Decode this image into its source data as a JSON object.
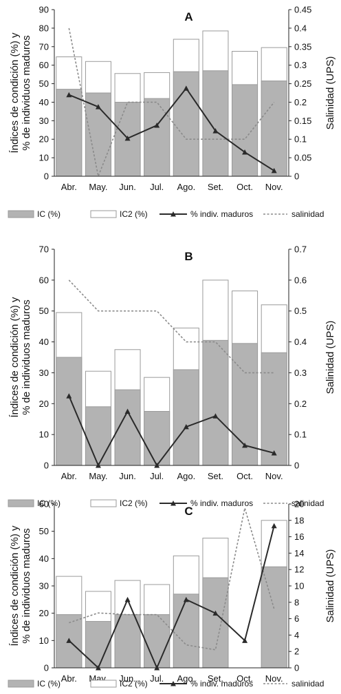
{
  "chart_data": [
    {
      "type": "bar",
      "title": "A",
      "categories": [
        "Abr.",
        "May.",
        "Jun.",
        "Jul.",
        "Ago.",
        "Set.",
        "Oct.",
        "Nov."
      ],
      "ylabel": "Índices de condición (%) y\n% de individuos maduros",
      "y2label": "Salinidad (UPS)",
      "ylim": [
        0,
        90
      ],
      "yticks": [
        0,
        10,
        20,
        30,
        40,
        50,
        60,
        70,
        80,
        90
      ],
      "y2lim": [
        0,
        0.45
      ],
      "y2ticks": [
        "0",
        "0.05",
        "0.1",
        "0.15",
        "0.2",
        "0.25",
        "0.3",
        "0.35",
        "0.4",
        "0.45"
      ],
      "series": [
        {
          "name": "IC (%)",
          "type": "bar",
          "color": "#b3b3b3",
          "values": [
            47,
            45,
            40,
            42,
            56.5,
            57,
            49.5,
            51.5
          ]
        },
        {
          "name": "IC2 (%)",
          "type": "bar",
          "color": "#ffffff",
          "values": [
            64.5,
            62,
            55.5,
            56,
            74,
            78.5,
            67.5,
            69.5
          ]
        },
        {
          "name": "% indiv. maduros",
          "type": "line",
          "color": "#2a2a2a",
          "values": [
            44,
            37.5,
            20.5,
            27.5,
            47.5,
            24.5,
            13,
            3
          ]
        },
        {
          "name": "salinidad",
          "type": "line",
          "axis": "secondary",
          "color": "#8a8a8a",
          "values": [
            0.4,
            0,
            0.2,
            0.2,
            0.1,
            0.1,
            0.1,
            0.2
          ]
        }
      ],
      "legend": "bottom"
    },
    {
      "type": "bar",
      "title": "B",
      "categories": [
        "Abr.",
        "May.",
        "Jun.",
        "Jul.",
        "Ago.",
        "Set.",
        "Oct.",
        "Nov."
      ],
      "ylabel": "Índices de condición (%) y\n% de individuos maduros",
      "y2label": "Salinidad (UPS)",
      "ylim": [
        0,
        70
      ],
      "yticks": [
        0,
        10,
        20,
        30,
        40,
        50,
        60,
        70
      ],
      "y2lim": [
        0,
        0.7
      ],
      "y2ticks": [
        "0",
        "0.1",
        "0.2",
        "0.3",
        "0.4",
        "0.5",
        "0.6",
        "0.7"
      ],
      "series": [
        {
          "name": "IC (%)",
          "type": "bar",
          "color": "#b3b3b3",
          "values": [
            35,
            19,
            24.5,
            17.5,
            31,
            40.5,
            39.5,
            36.5
          ]
        },
        {
          "name": "IC2 (%)",
          "type": "bar",
          "color": "#ffffff",
          "values": [
            49.5,
            30.5,
            37.5,
            28.5,
            44.5,
            60,
            56.5,
            52
          ]
        },
        {
          "name": "% indiv. maduros",
          "type": "line",
          "color": "#2a2a2a",
          "values": [
            22.5,
            0,
            17.5,
            0,
            12.5,
            16,
            6.5,
            4
          ]
        },
        {
          "name": "salinidad",
          "type": "line",
          "axis": "secondary",
          "color": "#8a8a8a",
          "values": [
            0.6,
            0.5,
            0.5,
            0.5,
            0.4,
            0.4,
            0.3,
            0.3
          ]
        }
      ],
      "legend": "bottom"
    },
    {
      "type": "bar",
      "title": "C",
      "categories": [
        "Abr.",
        "May.",
        "Jun.",
        "Jul.",
        "Ago.",
        "Set.",
        "Oct.",
        "Nov."
      ],
      "ylabel": "Índices de condición (%) y\n% de individuos maduros",
      "y2label": "Salinidad (UPS)",
      "ylim": [
        0,
        60
      ],
      "yticks": [
        0,
        10,
        20,
        30,
        40,
        50,
        60
      ],
      "y2lim": [
        0,
        20
      ],
      "y2ticks": [
        "0",
        "2",
        "4",
        "6",
        "8",
        "10",
        "12",
        "14",
        "16",
        "18",
        "20"
      ],
      "series": [
        {
          "name": "IC (%)",
          "type": "bar",
          "color": "#b3b3b3",
          "values": [
            19.5,
            17,
            19.5,
            19.5,
            27,
            33,
            0,
            37
          ]
        },
        {
          "name": "IC2 (%)",
          "type": "bar",
          "color": "#ffffff",
          "values": [
            33.5,
            28,
            32,
            30.5,
            41,
            47.5,
            0,
            54
          ]
        },
        {
          "name": "% indiv. maduros",
          "type": "line",
          "color": "#2a2a2a",
          "values": [
            10,
            0,
            25,
            0,
            25,
            20,
            10,
            52
          ]
        },
        {
          "name": "salinidad",
          "type": "line",
          "axis": "secondary",
          "color": "#8a8a8a",
          "values": [
            5.5,
            6.7,
            6.5,
            6.5,
            2.8,
            2.2,
            19.5,
            7.2
          ]
        }
      ],
      "legend": "bottom"
    }
  ]
}
